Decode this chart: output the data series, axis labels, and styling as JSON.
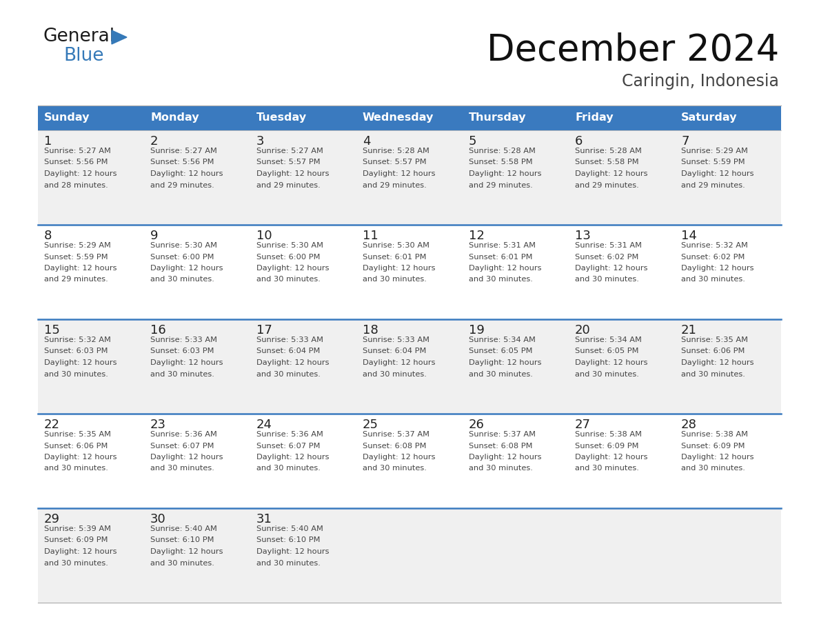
{
  "title": "December 2024",
  "subtitle": "Caringin, Indonesia",
  "header_color": "#3a7abf",
  "header_text_color": "#ffffff",
  "days_of_week": [
    "Sunday",
    "Monday",
    "Tuesday",
    "Wednesday",
    "Thursday",
    "Friday",
    "Saturday"
  ],
  "bg_color": "#ffffff",
  "cell_bg_white": "#ffffff",
  "cell_bg_gray": "#f0f0f0",
  "row_sep_color": "#3a7abf",
  "cell_border_color": "#cccccc",
  "cell_text_color": "#444444",
  "day_num_color": "#222222",
  "calendar_data": [
    [
      {
        "day": 1,
        "sunrise": "5:27 AM",
        "sunset": "5:56 PM",
        "daylight_h": "12 hours",
        "daylight_m": "28 minutes"
      },
      {
        "day": 2,
        "sunrise": "5:27 AM",
        "sunset": "5:56 PM",
        "daylight_h": "12 hours",
        "daylight_m": "29 minutes"
      },
      {
        "day": 3,
        "sunrise": "5:27 AM",
        "sunset": "5:57 PM",
        "daylight_h": "12 hours",
        "daylight_m": "29 minutes"
      },
      {
        "day": 4,
        "sunrise": "5:28 AM",
        "sunset": "5:57 PM",
        "daylight_h": "12 hours",
        "daylight_m": "29 minutes"
      },
      {
        "day": 5,
        "sunrise": "5:28 AM",
        "sunset": "5:58 PM",
        "daylight_h": "12 hours",
        "daylight_m": "29 minutes"
      },
      {
        "day": 6,
        "sunrise": "5:28 AM",
        "sunset": "5:58 PM",
        "daylight_h": "12 hours",
        "daylight_m": "29 minutes"
      },
      {
        "day": 7,
        "sunrise": "5:29 AM",
        "sunset": "5:59 PM",
        "daylight_h": "12 hours",
        "daylight_m": "29 minutes"
      }
    ],
    [
      {
        "day": 8,
        "sunrise": "5:29 AM",
        "sunset": "5:59 PM",
        "daylight_h": "12 hours",
        "daylight_m": "29 minutes"
      },
      {
        "day": 9,
        "sunrise": "5:30 AM",
        "sunset": "6:00 PM",
        "daylight_h": "12 hours",
        "daylight_m": "30 minutes"
      },
      {
        "day": 10,
        "sunrise": "5:30 AM",
        "sunset": "6:00 PM",
        "daylight_h": "12 hours",
        "daylight_m": "30 minutes"
      },
      {
        "day": 11,
        "sunrise": "5:30 AM",
        "sunset": "6:01 PM",
        "daylight_h": "12 hours",
        "daylight_m": "30 minutes"
      },
      {
        "day": 12,
        "sunrise": "5:31 AM",
        "sunset": "6:01 PM",
        "daylight_h": "12 hours",
        "daylight_m": "30 minutes"
      },
      {
        "day": 13,
        "sunrise": "5:31 AM",
        "sunset": "6:02 PM",
        "daylight_h": "12 hours",
        "daylight_m": "30 minutes"
      },
      {
        "day": 14,
        "sunrise": "5:32 AM",
        "sunset": "6:02 PM",
        "daylight_h": "12 hours",
        "daylight_m": "30 minutes"
      }
    ],
    [
      {
        "day": 15,
        "sunrise": "5:32 AM",
        "sunset": "6:03 PM",
        "daylight_h": "12 hours",
        "daylight_m": "30 minutes"
      },
      {
        "day": 16,
        "sunrise": "5:33 AM",
        "sunset": "6:03 PM",
        "daylight_h": "12 hours",
        "daylight_m": "30 minutes"
      },
      {
        "day": 17,
        "sunrise": "5:33 AM",
        "sunset": "6:04 PM",
        "daylight_h": "12 hours",
        "daylight_m": "30 minutes"
      },
      {
        "day": 18,
        "sunrise": "5:33 AM",
        "sunset": "6:04 PM",
        "daylight_h": "12 hours",
        "daylight_m": "30 minutes"
      },
      {
        "day": 19,
        "sunrise": "5:34 AM",
        "sunset": "6:05 PM",
        "daylight_h": "12 hours",
        "daylight_m": "30 minutes"
      },
      {
        "day": 20,
        "sunrise": "5:34 AM",
        "sunset": "6:05 PM",
        "daylight_h": "12 hours",
        "daylight_m": "30 minutes"
      },
      {
        "day": 21,
        "sunrise": "5:35 AM",
        "sunset": "6:06 PM",
        "daylight_h": "12 hours",
        "daylight_m": "30 minutes"
      }
    ],
    [
      {
        "day": 22,
        "sunrise": "5:35 AM",
        "sunset": "6:06 PM",
        "daylight_h": "12 hours",
        "daylight_m": "30 minutes"
      },
      {
        "day": 23,
        "sunrise": "5:36 AM",
        "sunset": "6:07 PM",
        "daylight_h": "12 hours",
        "daylight_m": "30 minutes"
      },
      {
        "day": 24,
        "sunrise": "5:36 AM",
        "sunset": "6:07 PM",
        "daylight_h": "12 hours",
        "daylight_m": "30 minutes"
      },
      {
        "day": 25,
        "sunrise": "5:37 AM",
        "sunset": "6:08 PM",
        "daylight_h": "12 hours",
        "daylight_m": "30 minutes"
      },
      {
        "day": 26,
        "sunrise": "5:37 AM",
        "sunset": "6:08 PM",
        "daylight_h": "12 hours",
        "daylight_m": "30 minutes"
      },
      {
        "day": 27,
        "sunrise": "5:38 AM",
        "sunset": "6:09 PM",
        "daylight_h": "12 hours",
        "daylight_m": "30 minutes"
      },
      {
        "day": 28,
        "sunrise": "5:38 AM",
        "sunset": "6:09 PM",
        "daylight_h": "12 hours",
        "daylight_m": "30 minutes"
      }
    ],
    [
      {
        "day": 29,
        "sunrise": "5:39 AM",
        "sunset": "6:09 PM",
        "daylight_h": "12 hours",
        "daylight_m": "30 minutes"
      },
      {
        "day": 30,
        "sunrise": "5:40 AM",
        "sunset": "6:10 PM",
        "daylight_h": "12 hours",
        "daylight_m": "30 minutes"
      },
      {
        "day": 31,
        "sunrise": "5:40 AM",
        "sunset": "6:10 PM",
        "daylight_h": "12 hours",
        "daylight_m": "30 minutes"
      },
      null,
      null,
      null,
      null
    ]
  ],
  "logo_text_color": "#1a1a1a",
  "logo_blue_color": "#3579b8"
}
